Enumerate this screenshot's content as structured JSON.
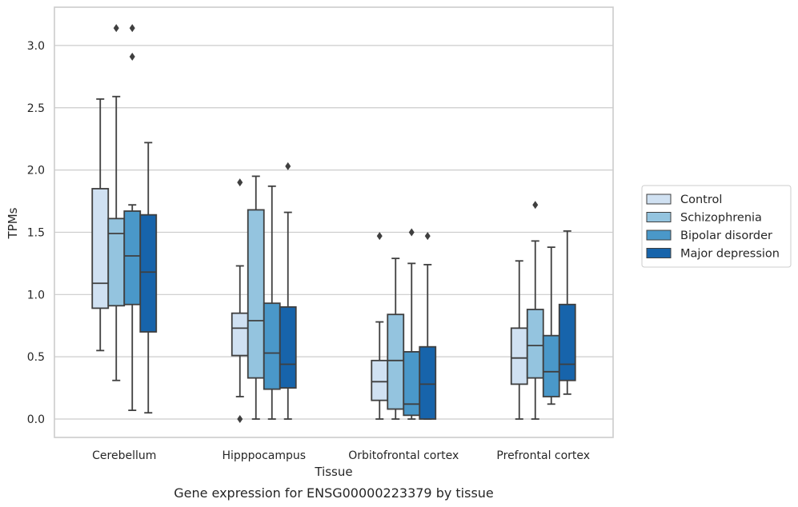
{
  "caption": "Gene expression for ENSG00000223379 by tissue",
  "chart_data": {
    "type": "box",
    "xlabel": "Tissue",
    "ylabel": "TPMs",
    "ylim": [
      -0.15,
      3.3
    ],
    "yticks": [
      "0.0",
      "0.5",
      "1.0",
      "1.5",
      "2.0",
      "2.5",
      "3.0"
    ],
    "grid": "horizontal",
    "legend_position": "right",
    "categories": [
      "Cerebellum",
      "Hipppocampus",
      "Orbitofrontal cortex",
      "Prefrontal cortex"
    ],
    "series": [
      {
        "name": "Control",
        "color": "#d0e1f2",
        "boxes": [
          {
            "whislo": 0.55,
            "q1": 0.89,
            "med": 1.09,
            "q3": 1.85,
            "whishi": 2.57,
            "fliers": []
          },
          {
            "whislo": 0.18,
            "q1": 0.51,
            "med": 0.73,
            "q3": 0.85,
            "whishi": 1.23,
            "fliers": [
              1.9,
              0.0
            ]
          },
          {
            "whislo": 0.0,
            "q1": 0.15,
            "med": 0.3,
            "q3": 0.47,
            "whishi": 0.78,
            "fliers": [
              1.47
            ]
          },
          {
            "whislo": 0.0,
            "q1": 0.28,
            "med": 0.49,
            "q3": 0.73,
            "whishi": 1.27,
            "fliers": []
          }
        ]
      },
      {
        "name": "Schizophrenia",
        "color": "#94c4df",
        "boxes": [
          {
            "whislo": 0.31,
            "q1": 0.91,
            "med": 1.49,
            "q3": 1.61,
            "whishi": 2.59,
            "fliers": [
              3.14
            ]
          },
          {
            "whislo": 0.0,
            "q1": 0.33,
            "med": 0.79,
            "q3": 1.68,
            "whishi": 1.95,
            "fliers": []
          },
          {
            "whislo": 0.0,
            "q1": 0.08,
            "med": 0.47,
            "q3": 0.84,
            "whishi": 1.29,
            "fliers": []
          },
          {
            "whislo": 0.0,
            "q1": 0.33,
            "med": 0.59,
            "q3": 0.88,
            "whishi": 1.43,
            "fliers": [
              1.72
            ]
          }
        ]
      },
      {
        "name": "Bipolar disorder",
        "color": "#4a98c9",
        "boxes": [
          {
            "whislo": 0.07,
            "q1": 0.92,
            "med": 1.31,
            "q3": 1.67,
            "whishi": 1.72,
            "fliers": [
              3.14,
              2.91
            ]
          },
          {
            "whislo": 0.0,
            "q1": 0.24,
            "med": 0.53,
            "q3": 0.93,
            "whishi": 1.87,
            "fliers": []
          },
          {
            "whislo": 0.0,
            "q1": 0.03,
            "med": 0.12,
            "q3": 0.54,
            "whishi": 1.25,
            "fliers": [
              1.5
            ]
          },
          {
            "whislo": 0.12,
            "q1": 0.18,
            "med": 0.38,
            "q3": 0.67,
            "whishi": 1.38,
            "fliers": []
          }
        ]
      },
      {
        "name": "Major depression",
        "color": "#1764ab",
        "boxes": [
          {
            "whislo": 0.05,
            "q1": 0.7,
            "med": 1.18,
            "q3": 1.64,
            "whishi": 2.22,
            "fliers": []
          },
          {
            "whislo": 0.0,
            "q1": 0.25,
            "med": 0.44,
            "q3": 0.9,
            "whishi": 1.66,
            "fliers": [
              2.03
            ]
          },
          {
            "whislo": 0.0,
            "q1": 0.0,
            "med": 0.28,
            "q3": 0.58,
            "whishi": 1.24,
            "fliers": [
              1.47
            ]
          },
          {
            "whislo": 0.2,
            "q1": 0.31,
            "med": 0.44,
            "q3": 0.92,
            "whishi": 1.51,
            "fliers": []
          }
        ]
      }
    ],
    "style": {
      "edge_color": "#3f3f3f",
      "grid_color": "#cccccc",
      "frame_color": "#cccccc",
      "flier_color": "#3f3f3f"
    }
  }
}
